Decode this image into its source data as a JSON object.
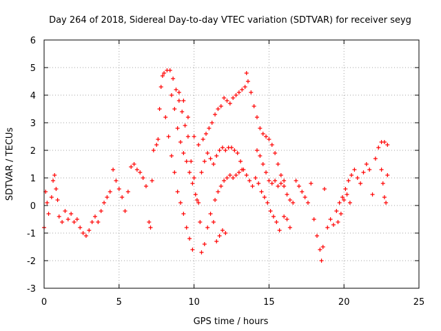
{
  "chart_data": {
    "type": "scatter",
    "title": "Day 264 of 2018, Sidereal Day-to-day VTEC variation (SDTVAR) for receiver seyg",
    "xlabel": "GPS time / hours",
    "ylabel": "SDTVAR / TECUs",
    "xlim": [
      0,
      25
    ],
    "ylim": [
      -3,
      6
    ],
    "xticks": [
      0,
      5,
      10,
      15,
      20,
      25
    ],
    "yticks": [
      -3,
      -2,
      -1,
      0,
      1,
      2,
      3,
      4,
      5,
      6
    ],
    "grid": true,
    "marker": "+",
    "colors": {
      "series": "#ff0000",
      "grid": "#a0a0a0",
      "axes": "#000000"
    },
    "series": [
      {
        "name": "SDTVAR",
        "points": [
          [
            0.0,
            -0.8
          ],
          [
            0.1,
            0.5
          ],
          [
            0.2,
            0.1
          ],
          [
            0.3,
            -0.3
          ],
          [
            0.5,
            0.3
          ],
          [
            0.6,
            0.9
          ],
          [
            0.7,
            1.1
          ],
          [
            0.8,
            0.6
          ],
          [
            0.9,
            0.2
          ],
          [
            1.0,
            -0.4
          ],
          [
            1.2,
            -0.6
          ],
          [
            1.4,
            -0.2
          ],
          [
            1.6,
            -0.5
          ],
          [
            1.8,
            -0.3
          ],
          [
            2.0,
            -0.6
          ],
          [
            2.2,
            -0.5
          ],
          [
            2.4,
            -0.8
          ],
          [
            2.6,
            -1.0
          ],
          [
            2.8,
            -1.1
          ],
          [
            3.0,
            -0.9
          ],
          [
            3.2,
            -0.6
          ],
          [
            3.4,
            -0.4
          ],
          [
            3.6,
            -0.6
          ],
          [
            3.8,
            -0.2
          ],
          [
            4.0,
            0.1
          ],
          [
            4.2,
            0.3
          ],
          [
            4.4,
            0.5
          ],
          [
            4.6,
            1.3
          ],
          [
            4.8,
            0.9
          ],
          [
            5.0,
            0.6
          ],
          [
            5.2,
            0.3
          ],
          [
            5.4,
            -0.2
          ],
          [
            5.6,
            0.5
          ],
          [
            5.8,
            1.4
          ],
          [
            6.0,
            1.5
          ],
          [
            6.2,
            1.3
          ],
          [
            6.4,
            1.2
          ],
          [
            6.6,
            1.0
          ],
          [
            6.8,
            0.7
          ],
          [
            7.0,
            -0.6
          ],
          [
            7.1,
            -0.8
          ],
          [
            7.2,
            0.9
          ],
          [
            7.3,
            2.0
          ],
          [
            7.5,
            2.2
          ],
          [
            7.6,
            2.4
          ],
          [
            7.7,
            3.5
          ],
          [
            7.8,
            4.3
          ],
          [
            7.9,
            4.7
          ],
          [
            8.0,
            4.8
          ],
          [
            8.2,
            4.9
          ],
          [
            8.4,
            4.9
          ],
          [
            8.6,
            4.6
          ],
          [
            8.8,
            4.2
          ],
          [
            9.0,
            3.8
          ],
          [
            9.2,
            3.4
          ],
          [
            9.4,
            2.9
          ],
          [
            9.6,
            2.5
          ],
          [
            9.8,
            1.6
          ],
          [
            10.0,
            1.0
          ],
          [
            10.2,
            0.2
          ],
          [
            10.4,
            -0.6
          ],
          [
            10.5,
            -1.7
          ],
          [
            10.7,
            -1.4
          ],
          [
            10.9,
            -0.8
          ],
          [
            11.1,
            -0.3
          ],
          [
            11.3,
            -0.6
          ],
          [
            11.5,
            -1.3
          ],
          [
            11.7,
            -1.1
          ],
          [
            11.9,
            -0.9
          ],
          [
            12.1,
            -1.0
          ],
          [
            8.5,
            4.0
          ],
          [
            8.7,
            3.5
          ],
          [
            8.9,
            2.8
          ],
          [
            9.1,
            2.3
          ],
          [
            9.3,
            1.9
          ],
          [
            9.5,
            1.6
          ],
          [
            9.7,
            1.2
          ],
          [
            9.9,
            0.8
          ],
          [
            10.1,
            0.4
          ],
          [
            10.3,
            0.1
          ],
          [
            8.1,
            3.2
          ],
          [
            8.3,
            2.5
          ],
          [
            8.5,
            1.8
          ],
          [
            8.7,
            1.2
          ],
          [
            8.9,
            0.5
          ],
          [
            9.1,
            0.1
          ],
          [
            9.3,
            -0.3
          ],
          [
            9.5,
            -0.8
          ],
          [
            9.7,
            -1.2
          ],
          [
            9.9,
            -1.6
          ],
          [
            9.0,
            4.1
          ],
          [
            9.3,
            3.8
          ],
          [
            9.6,
            3.2
          ],
          [
            10.0,
            2.5
          ],
          [
            10.3,
            2.2
          ],
          [
            10.6,
            2.4
          ],
          [
            10.8,
            2.6
          ],
          [
            11.0,
            2.8
          ],
          [
            11.2,
            3.0
          ],
          [
            11.4,
            3.3
          ],
          [
            11.6,
            3.5
          ],
          [
            11.8,
            3.6
          ],
          [
            12.0,
            3.9
          ],
          [
            12.2,
            3.8
          ],
          [
            12.4,
            3.7
          ],
          [
            12.6,
            3.9
          ],
          [
            12.8,
            4.0
          ],
          [
            13.0,
            4.1
          ],
          [
            13.2,
            4.2
          ],
          [
            13.4,
            4.3
          ],
          [
            13.5,
            4.8
          ],
          [
            13.6,
            4.5
          ],
          [
            13.8,
            4.1
          ],
          [
            14.0,
            3.6
          ],
          [
            14.2,
            3.2
          ],
          [
            14.4,
            2.8
          ],
          [
            14.6,
            2.6
          ],
          [
            14.8,
            2.5
          ],
          [
            15.0,
            2.4
          ],
          [
            15.2,
            2.2
          ],
          [
            15.4,
            1.9
          ],
          [
            15.6,
            1.5
          ],
          [
            15.8,
            1.1
          ],
          [
            16.0,
            0.7
          ],
          [
            16.2,
            0.4
          ],
          [
            16.4,
            0.2
          ],
          [
            16.6,
            0.1
          ],
          [
            16.8,
            0.9
          ],
          [
            17.0,
            0.7
          ],
          [
            17.2,
            0.5
          ],
          [
            10.5,
            1.2
          ],
          [
            10.7,
            1.6
          ],
          [
            10.9,
            1.9
          ],
          [
            11.1,
            1.7
          ],
          [
            11.3,
            1.5
          ],
          [
            11.5,
            1.8
          ],
          [
            11.7,
            2.0
          ],
          [
            11.9,
            2.1
          ],
          [
            12.1,
            2.0
          ],
          [
            12.3,
            2.1
          ],
          [
            12.5,
            2.1
          ],
          [
            12.7,
            2.0
          ],
          [
            12.9,
            1.9
          ],
          [
            13.1,
            1.6
          ],
          [
            13.3,
            1.3
          ],
          [
            13.5,
            1.1
          ],
          [
            13.7,
            0.9
          ],
          [
            13.9,
            0.7
          ],
          [
            14.1,
            1.0
          ],
          [
            14.3,
            0.8
          ],
          [
            14.5,
            0.5
          ],
          [
            14.7,
            0.3
          ],
          [
            14.9,
            0.1
          ],
          [
            15.1,
            -0.2
          ],
          [
            15.3,
            -0.4
          ],
          [
            15.5,
            -0.6
          ],
          [
            15.7,
            -0.9
          ],
          [
            16.0,
            -0.4
          ],
          [
            16.2,
            -0.5
          ],
          [
            16.4,
            -0.8
          ],
          [
            11.4,
            0.2
          ],
          [
            11.6,
            0.5
          ],
          [
            11.8,
            0.7
          ],
          [
            12.0,
            0.9
          ],
          [
            12.2,
            1.0
          ],
          [
            12.4,
            1.1
          ],
          [
            12.6,
            1.0
          ],
          [
            12.8,
            1.1
          ],
          [
            13.0,
            1.2
          ],
          [
            13.2,
            1.3
          ],
          [
            14.2,
            2.0
          ],
          [
            14.4,
            1.8
          ],
          [
            14.6,
            1.5
          ],
          [
            14.8,
            1.2
          ],
          [
            15.0,
            0.9
          ],
          [
            15.2,
            0.8
          ],
          [
            15.4,
            0.9
          ],
          [
            15.6,
            0.7
          ],
          [
            15.8,
            0.8
          ],
          [
            16.0,
            0.9
          ],
          [
            17.4,
            0.3
          ],
          [
            17.6,
            0.1
          ],
          [
            17.8,
            0.8
          ],
          [
            18.0,
            -0.5
          ],
          [
            18.2,
            -1.1
          ],
          [
            18.4,
            -1.6
          ],
          [
            18.5,
            -2.0
          ],
          [
            18.6,
            -1.5
          ],
          [
            18.7,
            0.6
          ],
          [
            18.9,
            -0.8
          ],
          [
            19.1,
            -0.5
          ],
          [
            19.3,
            -0.7
          ],
          [
            19.5,
            -0.2
          ],
          [
            19.7,
            0.1
          ],
          [
            19.9,
            0.3
          ],
          [
            20.1,
            0.6
          ],
          [
            20.3,
            0.9
          ],
          [
            20.5,
            1.1
          ],
          [
            20.7,
            1.3
          ],
          [
            20.9,
            1.0
          ],
          [
            21.1,
            0.8
          ],
          [
            21.3,
            1.2
          ],
          [
            21.5,
            1.5
          ],
          [
            21.7,
            1.3
          ],
          [
            21.9,
            0.4
          ],
          [
            22.1,
            1.7
          ],
          [
            22.3,
            2.1
          ],
          [
            22.5,
            2.3
          ],
          [
            22.7,
            2.3
          ],
          [
            22.9,
            2.2
          ],
          [
            22.5,
            1.3
          ],
          [
            22.6,
            0.8
          ],
          [
            22.7,
            0.3
          ],
          [
            22.8,
            0.1
          ],
          [
            22.9,
            1.1
          ],
          [
            20.0,
            0.2
          ],
          [
            20.2,
            0.4
          ],
          [
            20.4,
            0.1
          ],
          [
            19.8,
            -0.3
          ],
          [
            19.6,
            -0.6
          ]
        ]
      }
    ]
  }
}
